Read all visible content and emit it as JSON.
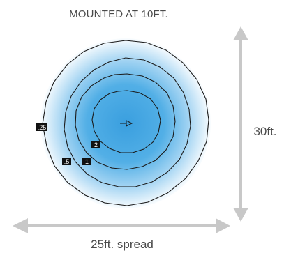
{
  "title": "MOUNTED AT 10FT.",
  "height_label": "30ft.",
  "spread_label": "25ft. spread",
  "colors": {
    "center": "#3a9fdf",
    "mid": "#8fcaf0",
    "edge": "#ffffff",
    "arrow": "#c8c8c8",
    "label_bg": "#111111",
    "text": "#4a4a4a"
  },
  "center_icon": "arrow-right-icon",
  "rings": [
    {
      "label": ".25"
    },
    {
      "label": ".5"
    },
    {
      "label": "1"
    },
    {
      "label": "2"
    }
  ]
}
